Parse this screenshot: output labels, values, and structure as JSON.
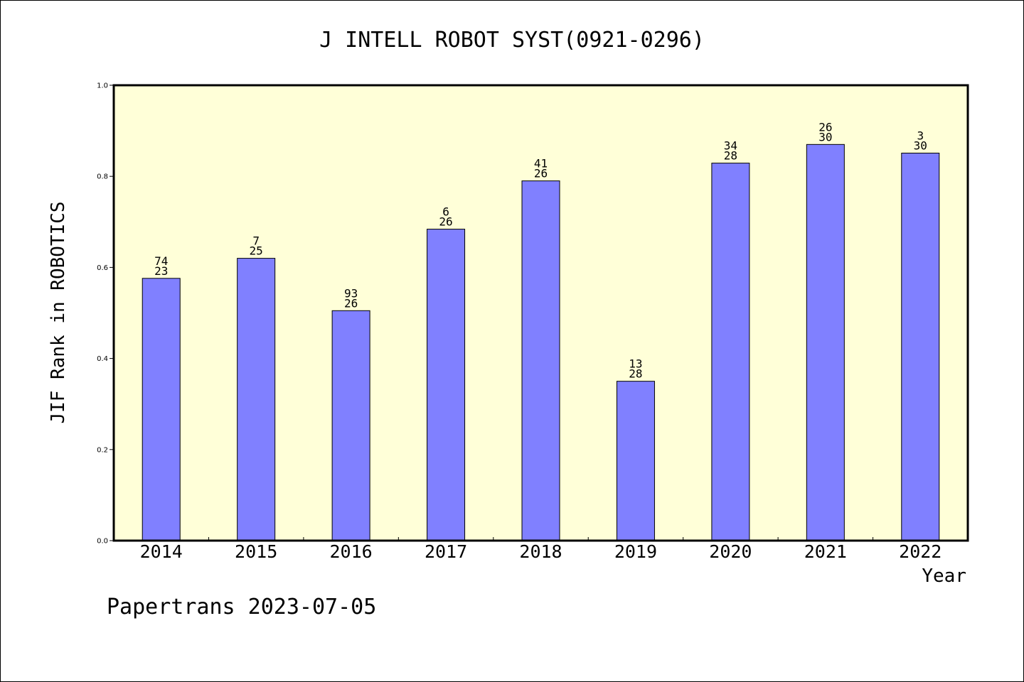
{
  "chart_data": {
    "type": "bar",
    "title": "J INTELL ROBOT SYST(0921-0296)",
    "xlabel": "Year",
    "ylabel": "JIF Rank in ROBOTICS",
    "ylim": [
      0,
      1.0
    ],
    "yticks": [
      "0.0",
      "0.2",
      "0.4",
      "0.6",
      "0.8",
      "1.0"
    ],
    "categories": [
      "2014",
      "2015",
      "2016",
      "2017",
      "2018",
      "2019",
      "2020",
      "2021",
      "2022"
    ],
    "values": [
      0.576,
      0.62,
      0.505,
      0.684,
      0.79,
      0.35,
      0.829,
      0.87,
      0.851
    ],
    "bar_labels": [
      {
        "top": "74",
        "bottom": "23"
      },
      {
        "top": "7",
        "bottom": "25"
      },
      {
        "top": "93",
        "bottom": "26"
      },
      {
        "top": "6",
        "bottom": "26"
      },
      {
        "top": "41",
        "bottom": "26"
      },
      {
        "top": "13",
        "bottom": "28"
      },
      {
        "top": "34",
        "bottom": "28"
      },
      {
        "top": "26",
        "bottom": "30"
      },
      {
        "top": "3",
        "bottom": "30"
      }
    ],
    "colors": {
      "bar": "#8080ff",
      "plot_bg": "#ffffd8"
    },
    "grid": false,
    "legend": "none"
  },
  "footer": {
    "text": "Papertrans 2023-07-05"
  }
}
